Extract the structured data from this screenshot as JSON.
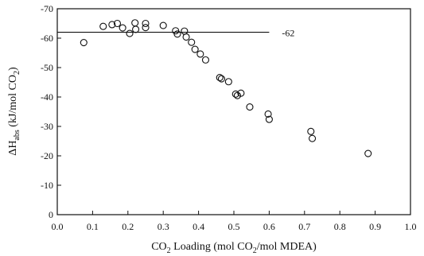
{
  "chart_data": {
    "type": "scatter",
    "xlabel_parts": [
      "CO",
      "2",
      " Loading (mol CO",
      "2",
      "/mol MDEA)"
    ],
    "ylabel_parts": [
      "ΔH",
      "abs",
      " (kJ/mol CO",
      "2",
      ")"
    ],
    "xlim": [
      0.0,
      1.0
    ],
    "ylim": [
      0,
      -70
    ],
    "x_ticks": [
      0.0,
      0.1,
      0.2,
      0.3,
      0.4,
      0.5,
      0.6,
      0.7,
      0.8,
      0.9,
      1.0
    ],
    "x_tick_labels": [
      "0.0",
      "0.1",
      "0.2",
      "0.3",
      "0.4",
      "0.5",
      "0.6",
      "0.7",
      "0.8",
      "0.9",
      "1.0"
    ],
    "y_ticks": [
      0,
      -10,
      -20,
      -30,
      -40,
      -50,
      -60,
      -70
    ],
    "y_tick_labels": [
      "0",
      "-10",
      "-20",
      "-30",
      "-40",
      "-50",
      "-60",
      "-70"
    ],
    "grid": false,
    "reference_line": {
      "y": -62,
      "x_range": [
        0.0,
        0.6
      ],
      "label": "-62"
    },
    "points": [
      {
        "x": 0.075,
        "y": -58.5
      },
      {
        "x": 0.13,
        "y": -64
      },
      {
        "x": 0.155,
        "y": -64.6
      },
      {
        "x": 0.17,
        "y": -65
      },
      {
        "x": 0.185,
        "y": -63.5
      },
      {
        "x": 0.205,
        "y": -61.6
      },
      {
        "x": 0.22,
        "y": -65.2
      },
      {
        "x": 0.222,
        "y": -63
      },
      {
        "x": 0.25,
        "y": -65
      },
      {
        "x": 0.25,
        "y": -63.6
      },
      {
        "x": 0.3,
        "y": -64.3
      },
      {
        "x": 0.335,
        "y": -62.5
      },
      {
        "x": 0.34,
        "y": -61.4
      },
      {
        "x": 0.36,
        "y": -62.4
      },
      {
        "x": 0.365,
        "y": -60.4
      },
      {
        "x": 0.38,
        "y": -58.6
      },
      {
        "x": 0.39,
        "y": -56.2
      },
      {
        "x": 0.405,
        "y": -54.6
      },
      {
        "x": 0.42,
        "y": -52.6
      },
      {
        "x": 0.46,
        "y": -46.6
      },
      {
        "x": 0.465,
        "y": -46.2
      },
      {
        "x": 0.485,
        "y": -45.2
      },
      {
        "x": 0.505,
        "y": -41
      },
      {
        "x": 0.51,
        "y": -40.5
      },
      {
        "x": 0.52,
        "y": -41.3
      },
      {
        "x": 0.545,
        "y": -36.6
      },
      {
        "x": 0.597,
        "y": -34.2
      },
      {
        "x": 0.6,
        "y": -32.4
      },
      {
        "x": 0.718,
        "y": -28.3
      },
      {
        "x": 0.722,
        "y": -25.9
      },
      {
        "x": 0.88,
        "y": -20.8
      }
    ]
  }
}
